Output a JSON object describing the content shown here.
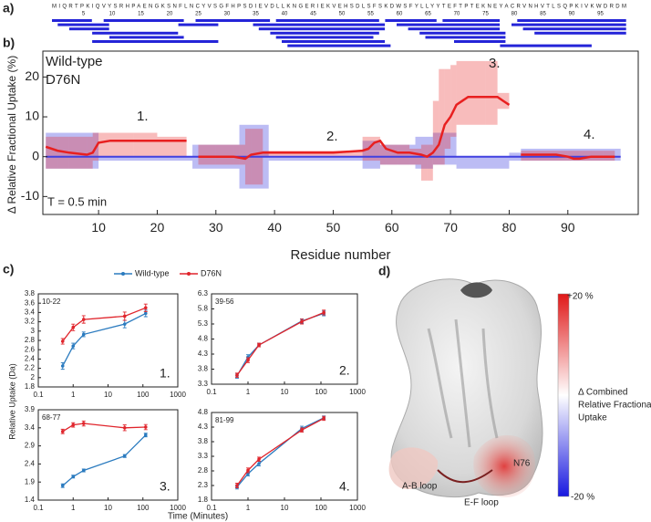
{
  "panel_labels": [
    "a)",
    "b)",
    "c)",
    "d)"
  ],
  "sequence": {
    "letters": "MIQRTPKIQVYSRHPAENGKSNFLNCYVSGFHPSDIEVDLLKNGERIEKVEHSDLSFSKDWSFYLLYYTEFTPTEKNEYACRVNHVTLSQPKIVKWDRDM",
    "numbers": [
      5,
      10,
      15,
      20,
      25,
      30,
      35,
      40,
      45,
      50,
      55,
      60,
      65,
      70,
      75,
      80,
      85,
      90,
      95
    ],
    "peptides": [
      [
        0,
        6
      ],
      [
        1,
        9
      ],
      [
        3,
        9
      ],
      [
        7,
        21
      ],
      [
        9,
        22
      ],
      [
        10,
        22
      ],
      [
        7,
        28
      ],
      [
        22,
        28
      ],
      [
        25,
        37
      ],
      [
        35,
        57
      ],
      [
        36,
        57
      ],
      [
        38,
        56
      ],
      [
        39,
        56
      ],
      [
        39,
        55
      ],
      [
        40,
        57
      ],
      [
        41,
        58
      ],
      [
        58,
        66
      ],
      [
        60,
        77
      ],
      [
        62,
        77
      ],
      [
        64,
        78
      ],
      [
        65,
        78
      ],
      [
        68,
        77
      ],
      [
        70,
        78
      ],
      [
        78,
        93
      ],
      [
        81,
        99
      ],
      [
        80,
        99
      ],
      [
        82,
        99
      ],
      [
        84,
        99
      ]
    ]
  },
  "chart_data": [
    {
      "type": "band-line",
      "ylabel": "Δ Relative Fractional Uptake (%)",
      "xlabel": "Residue number",
      "xlim": [
        0.5,
        102
      ],
      "ylim": [
        -14.5,
        26.5
      ],
      "xticks": [
        10,
        20,
        30,
        40,
        50,
        60,
        70,
        80,
        90
      ],
      "yticks": [
        -10,
        0,
        10,
        20
      ],
      "annotations": [
        "1.",
        "2.",
        "3.",
        "4.",
        "T = 0.5 min"
      ],
      "series": [
        {
          "name": "Wild-type",
          "color": "#4040e0",
          "x": [
            1,
            10,
            26,
            34,
            39,
            55,
            58,
            64,
            67,
            71,
            80,
            82,
            99
          ],
          "values": [
            0,
            0,
            0,
            0,
            0,
            0,
            0,
            0,
            0,
            0,
            0,
            0,
            0
          ],
          "lower": [
            -3,
            -1,
            -3,
            -8,
            -1,
            -3,
            -2,
            -3,
            -2,
            -3,
            -1,
            -1,
            null
          ],
          "upper": [
            6,
            0,
            3,
            8,
            0,
            4,
            3,
            5,
            6,
            0,
            1,
            2,
            null
          ]
        },
        {
          "name": "D76N",
          "color": "#e82020",
          "x": [
            1,
            3,
            5,
            8,
            9,
            10,
            12,
            16,
            20,
            25,
            26,
            27,
            30,
            33,
            35,
            36,
            38,
            40,
            45,
            50,
            55,
            56,
            57,
            58,
            59,
            61,
            63,
            65,
            66,
            67,
            68,
            69,
            70,
            71,
            73,
            76,
            78,
            79,
            80,
            81,
            82,
            85,
            88,
            90,
            91,
            92,
            94,
            96,
            98
          ],
          "values": [
            2.5,
            1.5,
            1,
            0.5,
            1,
            3.5,
            4,
            4,
            4,
            4,
            null,
            0,
            0,
            0,
            -0.5,
            0.5,
            1,
            1,
            1,
            1,
            1.5,
            2,
            3.5,
            4,
            2,
            1,
            1,
            0.5,
            0,
            1,
            3,
            8,
            10,
            13,
            15,
            15,
            15,
            14,
            13,
            null,
            0.5,
            0.5,
            0.5,
            0,
            -0.5,
            -0.5,
            0,
            0,
            0
          ],
          "lower": [
            -3,
            -3,
            -3,
            -3,
            -1,
            0,
            0,
            0,
            0,
            null,
            null,
            -2,
            -2,
            -2,
            -7,
            -7,
            0,
            0,
            0,
            0,
            -1,
            -1,
            -1,
            -2,
            -2,
            -2,
            -2,
            -6,
            -6,
            -2,
            -2,
            2,
            5,
            8,
            8,
            8,
            12,
            12,
            null,
            null,
            -1,
            -1,
            -1,
            -1,
            -1,
            -1,
            -1,
            -1,
            null
          ],
          "upper": [
            5,
            5,
            5,
            5,
            6,
            6,
            6,
            6,
            5,
            null,
            null,
            3,
            3,
            3,
            7,
            7,
            1.5,
            1.5,
            1.5,
            1.5,
            5,
            5,
            5,
            3,
            3,
            3,
            2,
            3,
            3,
            14,
            22,
            22,
            23,
            24,
            24,
            24,
            16,
            16,
            null,
            null,
            1.5,
            1.5,
            1.5,
            1.5,
            1.5,
            1.5,
            1.5,
            1.5,
            null
          ]
        }
      ]
    },
    {
      "type": "line",
      "xscale": "log",
      "xlabel": "Time (Minutes)",
      "ylabel": "Relative Uptake (Da)",
      "label": "10-22",
      "annotation": "1.",
      "x": [
        0.5,
        1,
        2,
        30,
        120
      ],
      "xlim": [
        0.1,
        1000
      ],
      "xticks": [
        0.1,
        1,
        10,
        100,
        1000
      ],
      "ylim": [
        1.8,
        3.8
      ],
      "yticks": [
        1.8,
        2,
        2.2,
        2.4,
        2.6,
        2.8,
        3,
        3.2,
        3.4,
        3.6,
        3.8
      ],
      "series": [
        {
          "name": "Wild-type",
          "color": "#2b7bbf",
          "values": [
            2.25,
            2.68,
            2.93,
            3.15,
            3.38
          ],
          "errors": [
            0.07,
            0.06,
            0.05,
            0.08,
            0.07
          ]
        },
        {
          "name": "D76N",
          "color": "#e0242b",
          "values": [
            2.78,
            3.08,
            3.25,
            3.32,
            3.5
          ],
          "errors": [
            0.06,
            0.07,
            0.08,
            0.09,
            0.08
          ]
        }
      ]
    },
    {
      "type": "line",
      "xscale": "log",
      "label": "39-56",
      "annotation": "2.",
      "x": [
        0.5,
        1,
        2,
        30,
        120
      ],
      "xlim": [
        0.1,
        1000
      ],
      "xticks": [
        0.1,
        1,
        10,
        100,
        1000
      ],
      "ylim": [
        3.3,
        6.3
      ],
      "yticks": [
        3.3,
        3.8,
        4.3,
        4.8,
        5.3,
        5.8,
        6.3
      ],
      "series": [
        {
          "color": "#2b7bbf",
          "values": [
            3.58,
            4.2,
            4.6,
            5.4,
            5.65
          ],
          "errors": [
            0.08,
            0.08,
            0.06,
            0.07,
            0.08
          ]
        },
        {
          "color": "#e0242b",
          "values": [
            3.6,
            4.1,
            4.6,
            5.38,
            5.68
          ],
          "errors": [
            0.07,
            0.08,
            0.06,
            0.08,
            0.08
          ]
        }
      ]
    },
    {
      "type": "line",
      "xscale": "log",
      "label": "68-77",
      "annotation": "3.",
      "x": [
        0.5,
        1,
        2,
        30,
        120
      ],
      "xlim": [
        0.1,
        1000
      ],
      "xticks": [
        0.1,
        1,
        10,
        100,
        1000
      ],
      "ylim": [
        1.4,
        3.9
      ],
      "yticks": [
        1.4,
        1.9,
        2.4,
        2.9,
        3.4,
        3.9
      ],
      "series": [
        {
          "color": "#2b7bbf",
          "values": [
            1.8,
            2.05,
            2.22,
            2.62,
            3.2
          ],
          "errors": [
            0.05,
            0.04,
            0.04,
            0.04,
            0.05
          ]
        },
        {
          "color": "#e0242b",
          "values": [
            3.3,
            3.48,
            3.52,
            3.4,
            3.42
          ],
          "errors": [
            0.06,
            0.06,
            0.07,
            0.08,
            0.07
          ]
        }
      ]
    },
    {
      "type": "line",
      "xscale": "log",
      "label": "81-99",
      "annotation": "4.",
      "x": [
        0.5,
        1,
        2,
        30,
        120
      ],
      "xlim": [
        0.1,
        1000
      ],
      "xticks": [
        0.1,
        1,
        10,
        100,
        1000
      ],
      "ylim": [
        1.8,
        4.8
      ],
      "yticks": [
        1.8,
        2.3,
        2.8,
        3.3,
        3.8,
        4.3,
        4.8
      ],
      "series": [
        {
          "color": "#2b7bbf",
          "values": [
            2.25,
            2.7,
            3.05,
            4.25,
            4.62
          ],
          "errors": [
            0.07,
            0.07,
            0.08,
            0.08,
            0.06
          ]
        },
        {
          "color": "#e0242b",
          "values": [
            2.3,
            2.82,
            3.2,
            4.2,
            4.6
          ],
          "errors": [
            0.08,
            0.08,
            0.07,
            0.07,
            0.07
          ]
        }
      ]
    }
  ],
  "panel_d": {
    "colorbar": {
      "max_label": "+20 %",
      "min_label": "-20 %",
      "title": [
        "Δ Combined",
        "Relative Fractional",
        "Uptake"
      ]
    },
    "labels": [
      "N76",
      "A-B loop",
      "E-F loop"
    ]
  }
}
